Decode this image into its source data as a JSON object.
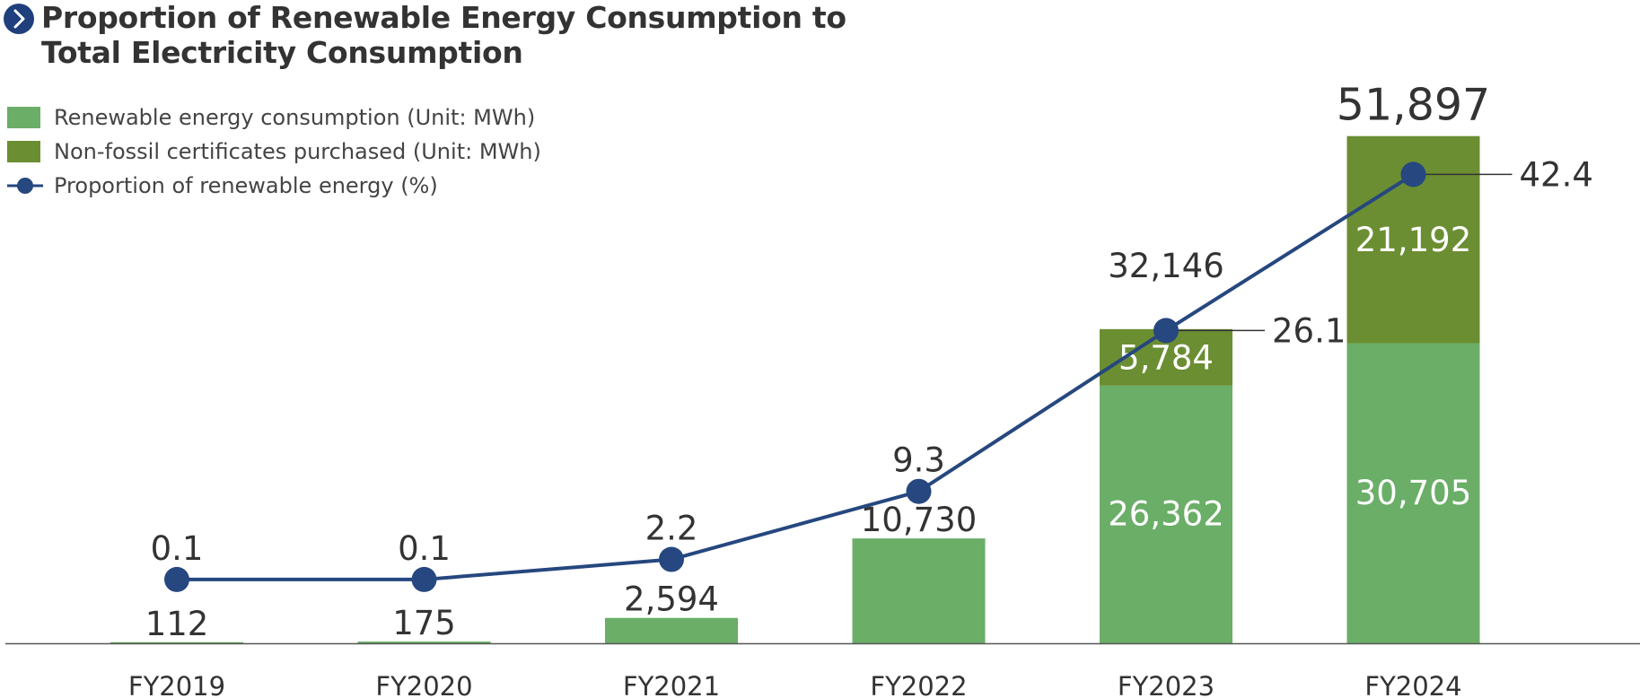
{
  "chart_data": {
    "type": "bar",
    "title": "Proportion of Renewable Energy Consumption to Total Electricity Consumption",
    "title_lines": [
      "Proportion of Renewable Energy Consumption to",
      "Total Electricity Consumption"
    ],
    "categories": [
      "FY2019",
      "FY2020",
      "FY2021",
      "FY2022",
      "FY2023",
      "FY2024"
    ],
    "stacked": true,
    "series": [
      {
        "name": "Renewable energy consumption (Unit: MWh)",
        "kind": "bar",
        "color": "#6aae67",
        "values": [
          112,
          175,
          2594,
          10730,
          26362,
          30705
        ],
        "labels": [
          "112",
          "175",
          "2,594",
          "10,730",
          "26,362",
          "30,705"
        ]
      },
      {
        "name": "Non-fossil certificates purchased (Unit: MWh)",
        "kind": "bar",
        "color": "#6b8e32",
        "values": [
          0,
          0,
          0,
          0,
          5784,
          21192
        ],
        "labels": [
          "",
          "",
          "",
          "",
          "5,784",
          "21,192"
        ]
      },
      {
        "name": "Proportion of renewable energy (%)",
        "kind": "line",
        "color": "#26477f",
        "values": [
          0.1,
          0.1,
          2.2,
          9.3,
          26.1,
          42.4
        ],
        "labels": [
          "0.1",
          "0.1",
          "2.2",
          "9.3",
          "26.1",
          "42.4"
        ]
      }
    ],
    "totals": [
      null,
      null,
      null,
      null,
      32146,
      51897
    ],
    "total_labels": [
      "",
      "",
      "",
      "",
      "32,146",
      "51,897"
    ],
    "ylim": [
      0,
      56000
    ],
    "y2lim": [
      0,
      47.5
    ],
    "grid": false,
    "legend": "top-left",
    "xlabel": "",
    "ylabel": ""
  },
  "colors": {
    "title_icon": "#1f3f7d",
    "axis": "#555555",
    "text": "#333333"
  },
  "icons": {
    "title_icon": "chevron-right-icon"
  }
}
